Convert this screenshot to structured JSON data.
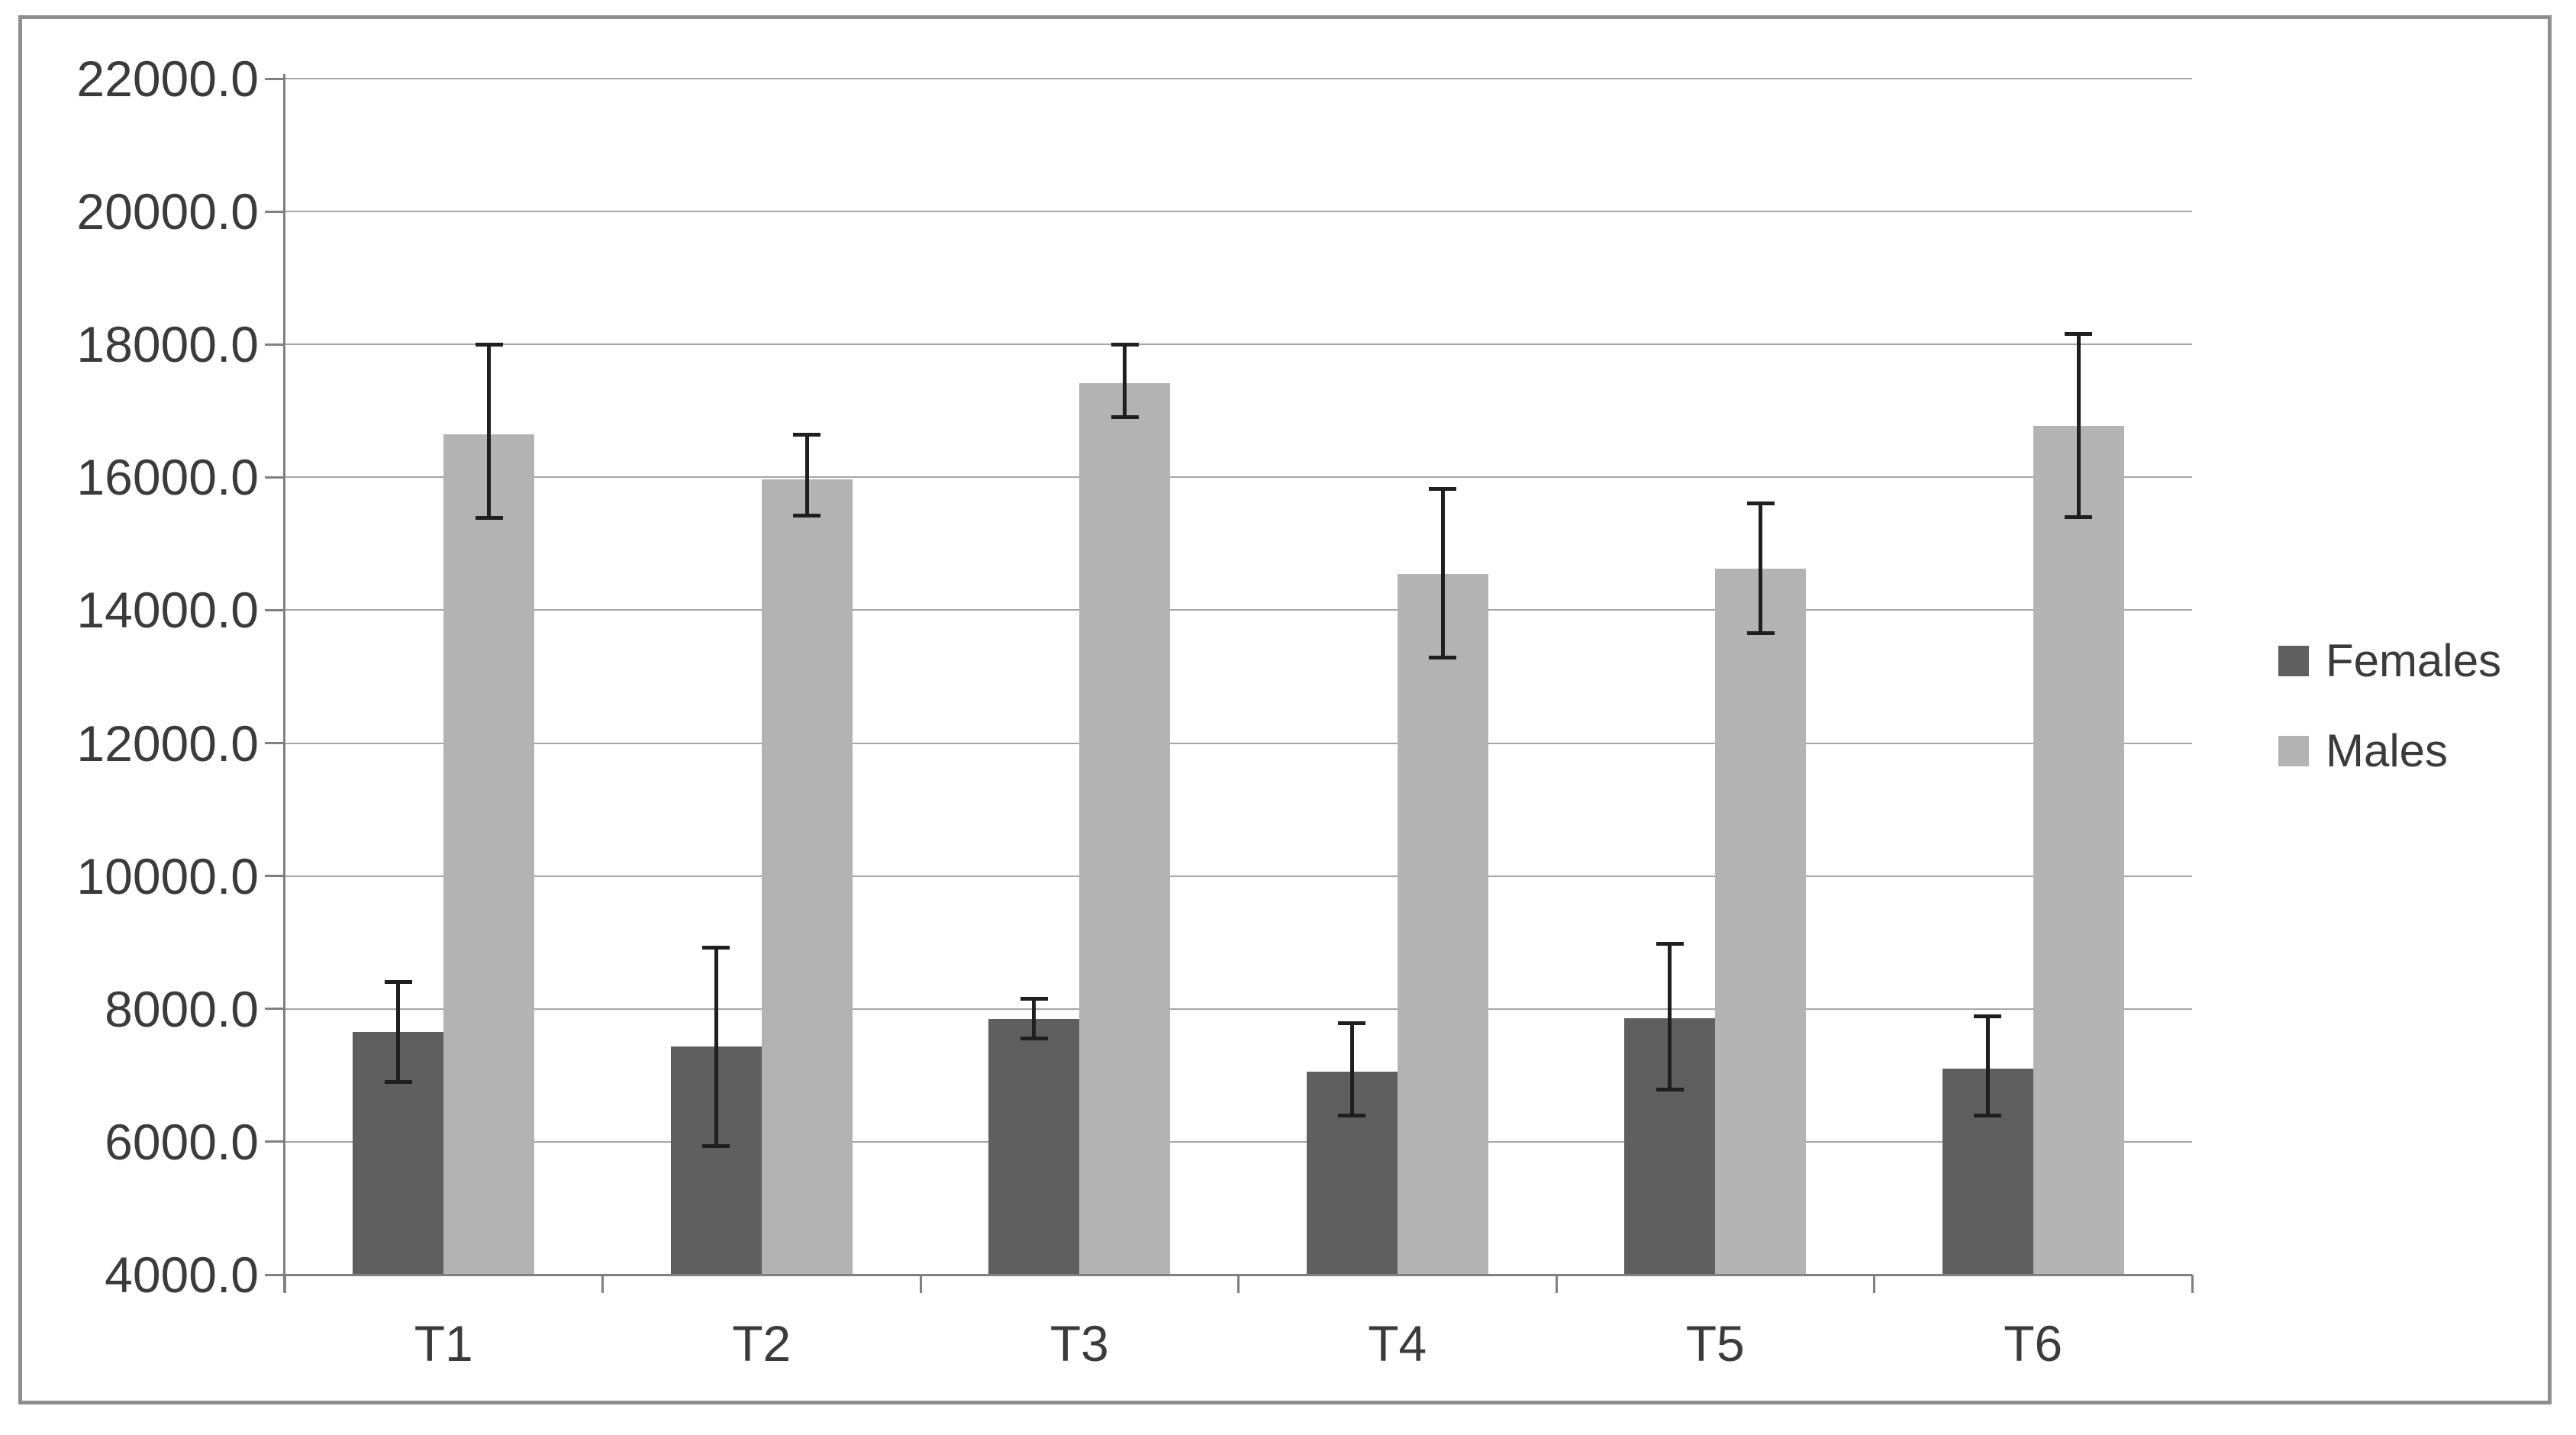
{
  "figure": {
    "background": "#ffffff",
    "border_color": "#8e8e8e"
  },
  "colors": {
    "females_bar": "#5f5f5f",
    "males_bar": "#b3b3b3",
    "gridline": "#a6a6a6",
    "axis": "#808080",
    "error_bar": "#1f1f1f",
    "text": "#3b3b3b"
  },
  "chart_data": {
    "type": "bar",
    "title": "",
    "xlabel": "",
    "ylabel": "",
    "categories": [
      "T1",
      "T2",
      "T3",
      "T4",
      "T5",
      "T6"
    ],
    "series": [
      {
        "name": "Females",
        "color": "#5f5f5f",
        "values": [
          7650,
          7430,
          7850,
          7050,
          7860,
          7100
        ],
        "error_low": [
          6900,
          5930,
          7550,
          6390,
          6780,
          6400
        ],
        "error_high": [
          8400,
          8920,
          8150,
          7780,
          8980,
          7890
        ]
      },
      {
        "name": "Males",
        "color": "#b3b3b3",
        "values": [
          16650,
          15970,
          17420,
          14550,
          14620,
          16770
        ],
        "error_low": [
          15390,
          15420,
          16900,
          13290,
          13650,
          15400
        ],
        "error_high": [
          18000,
          16640,
          18000,
          15830,
          15610,
          18160
        ]
      }
    ],
    "ylim": [
      4000,
      22000
    ],
    "y_tick_step": 2000,
    "y_tick_labels": [
      "4000.0",
      "6000.0",
      "8000.0",
      "10000.0",
      "12000.0",
      "14000.0",
      "16000.0",
      "18000.0",
      "20000.0",
      "22000.0"
    ],
    "grid": true,
    "error_bars": true,
    "legend_position": "right",
    "legend_entries": [
      "Females",
      "Males"
    ]
  }
}
